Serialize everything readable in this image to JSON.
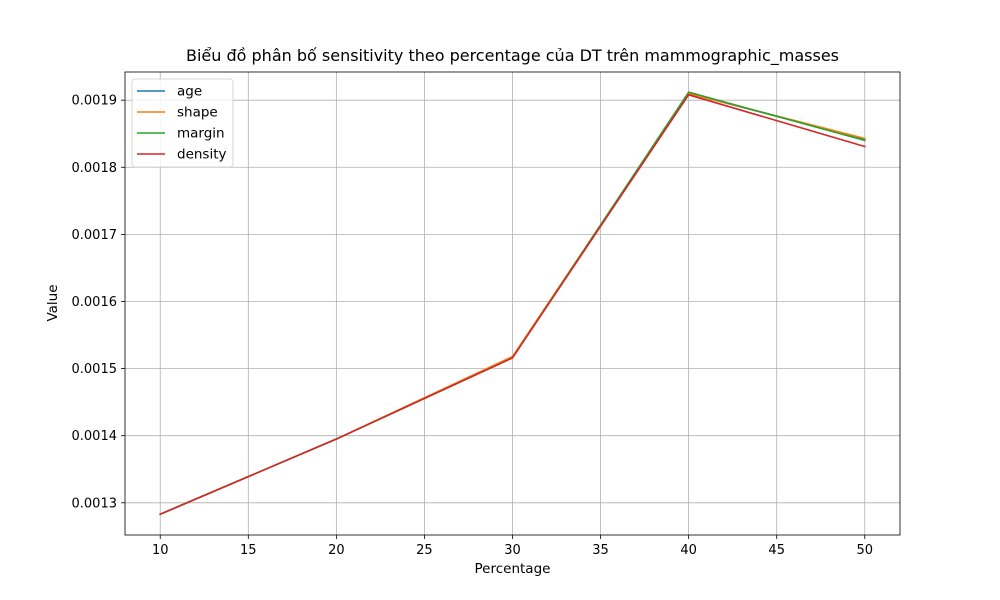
{
  "chart_data": {
    "type": "line",
    "title": "Biểu đồ phân bố sensitivity theo percentage của DT trên mammographic_masses",
    "xlabel": "Percentage",
    "ylabel": "Value",
    "x": [
      10,
      20,
      30,
      40,
      50
    ],
    "xlim": [
      8,
      52
    ],
    "ylim": [
      0.001252,
      0.001942
    ],
    "xticks": [
      "10",
      "15",
      "20",
      "25",
      "30",
      "35",
      "40",
      "45",
      "50"
    ],
    "yticks": [
      "0.0013",
      "0.0014",
      "0.0015",
      "0.0016",
      "0.0017",
      "0.0018",
      "0.0019"
    ],
    "grid": true,
    "legend_position": "top-left",
    "series": [
      {
        "name": "age",
        "color": "#1f77b4",
        "values": [
          0.001283,
          0.001395,
          0.001517,
          0.00191,
          0.001842
        ]
      },
      {
        "name": "shape",
        "color": "#ff7f0e",
        "values": [
          0.001283,
          0.001395,
          0.001518,
          0.00191,
          0.001843
        ]
      },
      {
        "name": "margin",
        "color": "#2ca02c",
        "values": [
          0.001283,
          0.001395,
          0.001516,
          0.001912,
          0.00184
        ]
      },
      {
        "name": "density",
        "color": "#d62728",
        "values": [
          0.001283,
          0.001395,
          0.001516,
          0.001908,
          0.001831
        ]
      }
    ]
  }
}
